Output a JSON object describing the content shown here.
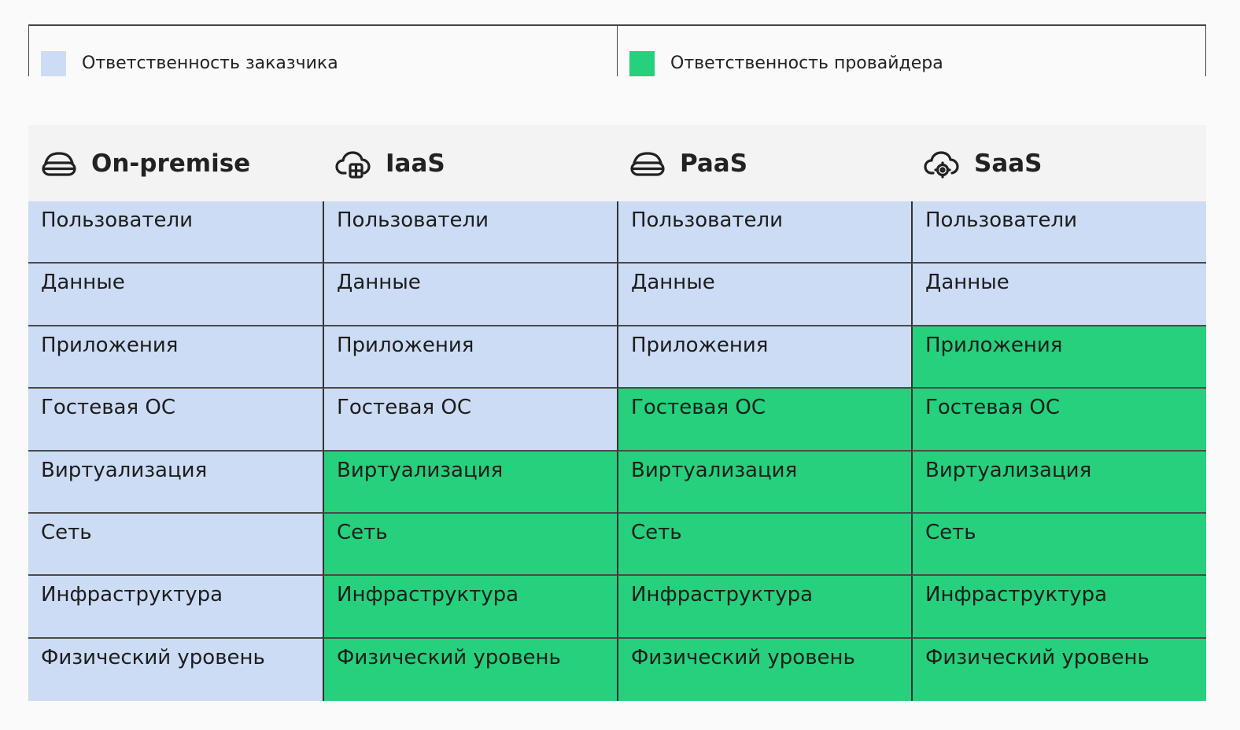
{
  "colors": {
    "customer": "#ccdcf4",
    "provider": "#26d07c",
    "header_bg": "#f3f3f3"
  },
  "legend": [
    {
      "label": "Ответственность заказчика",
      "color": "customer"
    },
    {
      "label": "Ответственность провайдера",
      "color": "provider"
    }
  ],
  "columns": [
    {
      "title": "On-premise",
      "icon": "server-icon"
    },
    {
      "title": "IaaS",
      "icon": "cloud-server-icon"
    },
    {
      "title": "PaaS",
      "icon": "server-icon"
    },
    {
      "title": "SaaS",
      "icon": "cloud-gear-icon"
    }
  ],
  "layers": [
    "Пользователи",
    "Данные",
    "Приложения",
    "Гостевая ОС",
    "Виртуализация",
    "Сеть",
    "Инфраструктура",
    "Физический уровень"
  ],
  "responsibility": [
    [
      "customer",
      "customer",
      "customer",
      "customer",
      "customer",
      "customer",
      "customer",
      "customer"
    ],
    [
      "customer",
      "customer",
      "customer",
      "customer",
      "provider",
      "provider",
      "provider",
      "provider"
    ],
    [
      "customer",
      "customer",
      "customer",
      "provider",
      "provider",
      "provider",
      "provider",
      "provider"
    ],
    [
      "customer",
      "customer",
      "provider",
      "provider",
      "provider",
      "provider",
      "provider",
      "provider"
    ]
  ]
}
